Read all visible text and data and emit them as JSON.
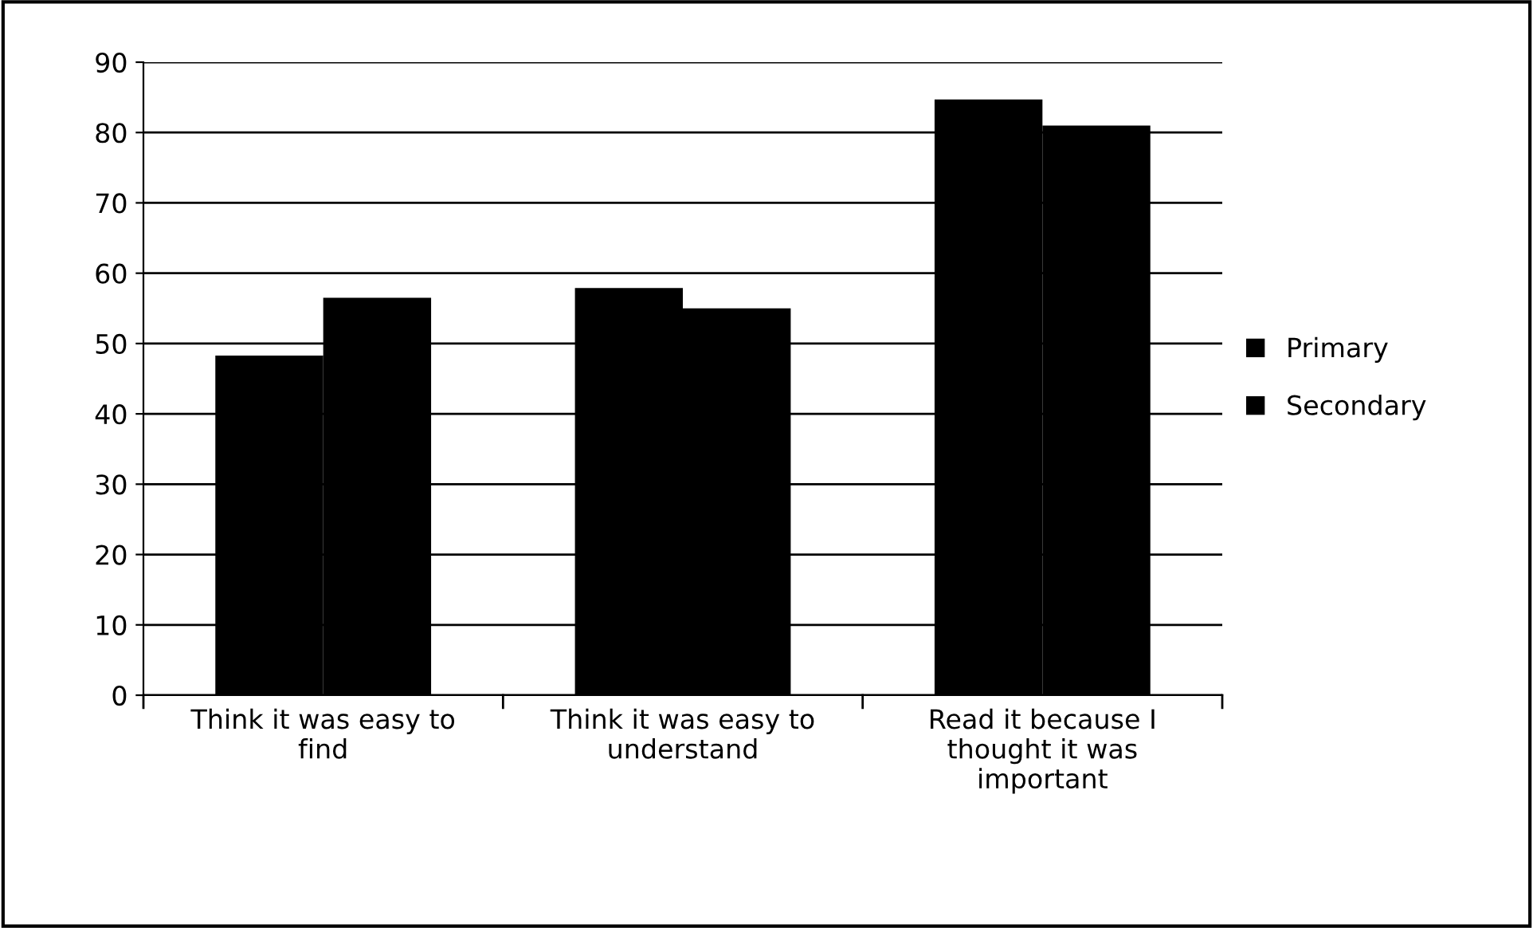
{
  "chart_data": {
    "type": "bar",
    "categories": [
      "Think it was easy to\nfind",
      "Think it was easy to\nunderstand",
      "Read it because I\nthought it was\nimportant"
    ],
    "series": [
      {
        "name": "Primary",
        "color": "#000000",
        "values": [
          48.3,
          57.9,
          84.7
        ]
      },
      {
        "name": "Secondary",
        "color": "#000000",
        "values": [
          56.5,
          55.0,
          81.0
        ]
      }
    ],
    "ylim": [
      0,
      90
    ],
    "yticks": [
      0,
      10,
      20,
      30,
      40,
      50,
      60,
      70,
      80,
      90
    ],
    "grid": "y",
    "legend": "right"
  }
}
